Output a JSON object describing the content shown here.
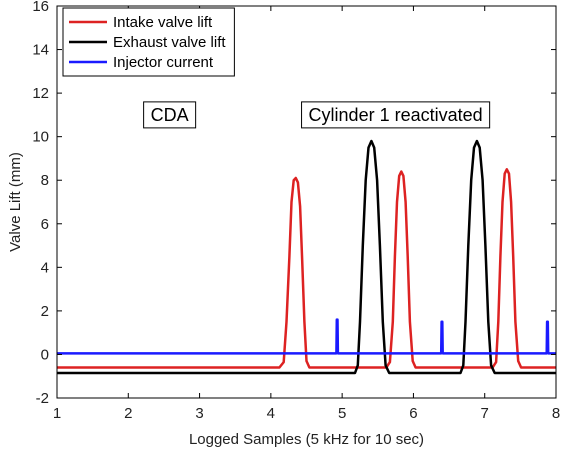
{
  "chart_data": {
    "type": "line",
    "title": "",
    "xlabel": "Logged Samples (5 kHz for 10 sec)",
    "ylabel": "Valve Lift (mm)",
    "xlim": [
      1,
      8
    ],
    "ylim": [
      -2,
      16
    ],
    "xticks": [
      1,
      2,
      3,
      4,
      5,
      6,
      7,
      8
    ],
    "yticks": [
      -2,
      0,
      2,
      4,
      6,
      8,
      10,
      12,
      14,
      16
    ],
    "grid": false,
    "legend_position": "top-left",
    "annotations": [
      {
        "text": "CDA",
        "x": 2.58,
        "y": 11.0
      },
      {
        "text": "Cylinder 1 reactivated",
        "x": 5.75,
        "y": 11.0
      }
    ],
    "series": [
      {
        "name": "Intake valve lift",
        "color": "#dd2222",
        "points": [
          [
            1.0,
            -0.6
          ],
          [
            4.12,
            -0.6
          ],
          [
            4.18,
            -0.35
          ],
          [
            4.22,
            1.5
          ],
          [
            4.26,
            4.5
          ],
          [
            4.29,
            7.0
          ],
          [
            4.32,
            8.0
          ],
          [
            4.35,
            8.1
          ],
          [
            4.38,
            7.9
          ],
          [
            4.41,
            6.8
          ],
          [
            4.44,
            4.3
          ],
          [
            4.47,
            1.5
          ],
          [
            4.5,
            -0.3
          ],
          [
            4.54,
            -0.6
          ],
          [
            5.62,
            -0.6
          ],
          [
            5.67,
            -0.35
          ],
          [
            5.71,
            1.5
          ],
          [
            5.74,
            4.5
          ],
          [
            5.77,
            7.0
          ],
          [
            5.8,
            8.2
          ],
          [
            5.83,
            8.4
          ],
          [
            5.86,
            8.2
          ],
          [
            5.89,
            7.0
          ],
          [
            5.92,
            4.5
          ],
          [
            5.95,
            1.5
          ],
          [
            5.99,
            -0.3
          ],
          [
            6.03,
            -0.6
          ],
          [
            7.11,
            -0.6
          ],
          [
            7.16,
            -0.35
          ],
          [
            7.19,
            1.5
          ],
          [
            7.22,
            4.5
          ],
          [
            7.25,
            7.0
          ],
          [
            7.28,
            8.3
          ],
          [
            7.31,
            8.5
          ],
          [
            7.34,
            8.3
          ],
          [
            7.37,
            7.0
          ],
          [
            7.4,
            4.5
          ],
          [
            7.43,
            1.5
          ],
          [
            7.47,
            -0.3
          ],
          [
            7.51,
            -0.6
          ],
          [
            8.0,
            -0.6
          ]
        ]
      },
      {
        "name": "Exhaust valve lift",
        "color": "#000000",
        "points": [
          [
            1.0,
            -0.85
          ],
          [
            5.18,
            -0.85
          ],
          [
            5.22,
            -0.5
          ],
          [
            5.25,
            1.5
          ],
          [
            5.29,
            5.0
          ],
          [
            5.33,
            8.0
          ],
          [
            5.37,
            9.5
          ],
          [
            5.41,
            9.8
          ],
          [
            5.45,
            9.5
          ],
          [
            5.49,
            8.0
          ],
          [
            5.53,
            5.0
          ],
          [
            5.57,
            1.5
          ],
          [
            5.61,
            -0.5
          ],
          [
            5.66,
            -0.85
          ],
          [
            6.66,
            -0.85
          ],
          [
            6.7,
            -0.5
          ],
          [
            6.73,
            1.5
          ],
          [
            6.77,
            5.0
          ],
          [
            6.81,
            8.0
          ],
          [
            6.85,
            9.5
          ],
          [
            6.89,
            9.8
          ],
          [
            6.93,
            9.5
          ],
          [
            6.97,
            8.0
          ],
          [
            7.01,
            5.0
          ],
          [
            7.05,
            1.5
          ],
          [
            7.09,
            -0.5
          ],
          [
            7.14,
            -0.85
          ],
          [
            8.0,
            -0.85
          ]
        ]
      },
      {
        "name": "Injector current",
        "color": "#1a1aff",
        "points": [
          [
            1.0,
            0.05
          ],
          [
            4.92,
            0.05
          ],
          [
            4.925,
            1.6
          ],
          [
            4.935,
            1.6
          ],
          [
            4.94,
            0.05
          ],
          [
            6.39,
            0.05
          ],
          [
            6.395,
            1.5
          ],
          [
            6.405,
            1.5
          ],
          [
            6.41,
            0.05
          ],
          [
            7.87,
            0.05
          ],
          [
            7.875,
            1.5
          ],
          [
            7.885,
            1.5
          ],
          [
            7.89,
            0.05
          ],
          [
            8.0,
            0.05
          ]
        ]
      }
    ]
  }
}
